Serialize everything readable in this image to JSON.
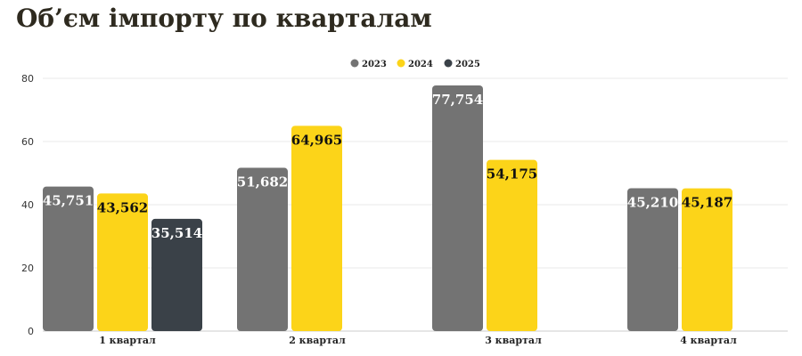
{
  "title": "Об’єм імпорту по кварталам",
  "colors": {
    "2023": "#737373",
    "2024": "#fcd419",
    "2025": "#3a4148"
  },
  "chart_data": {
    "type": "bar",
    "title": "Об’єм імпорту по кварталам",
    "categories": [
      "1 квартал",
      "2 квартал",
      "3 квартал",
      "4 квартал"
    ],
    "series": [
      {
        "name": "2023",
        "values": [
          45.751,
          51.682,
          77.754,
          45.21
        ],
        "labels": [
          "45,751",
          "51,682",
          "77,754",
          "45,210"
        ]
      },
      {
        "name": "2024",
        "values": [
          43.562,
          64.965,
          54.175,
          45.187
        ],
        "labels": [
          "43,562",
          "64,965",
          "54,175",
          "45,187"
        ]
      },
      {
        "name": "2025",
        "values": [
          35.514,
          null,
          null,
          null
        ],
        "labels": [
          "35,514",
          "",
          "",
          ""
        ]
      }
    ],
    "yticks": [
      "0",
      "20",
      "40",
      "60",
      "80"
    ],
    "ylim": [
      0,
      80
    ],
    "xlabel": "",
    "ylabel": "",
    "grid": true,
    "legend": "top-center"
  }
}
